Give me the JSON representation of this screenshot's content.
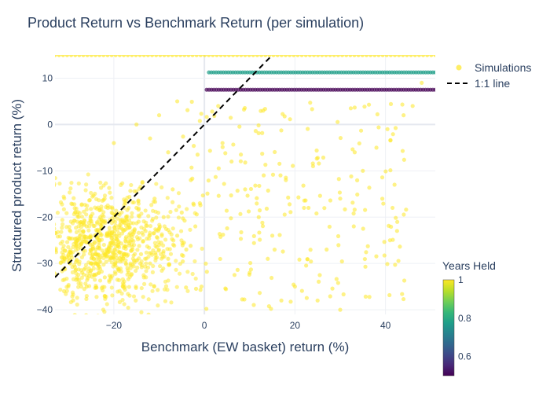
{
  "chart_data": {
    "type": "scatter",
    "title": "Product Return vs Benchmark Return (per simulation)",
    "xlabel": "Benchmark (EW basket) return (%)",
    "ylabel": "Structured product return (%)",
    "xlim": [
      -33,
      51
    ],
    "ylim": [
      -41,
      15
    ],
    "x_ticks": [
      -20,
      0,
      20,
      40
    ],
    "x_tick_labels": [
      "−20",
      "0",
      "20",
      "40"
    ],
    "y_ticks": [
      -40,
      -30,
      -20,
      -10,
      0,
      10
    ],
    "y_tick_labels": [
      "−40",
      "−30",
      "−20",
      "−10",
      "0",
      "10"
    ],
    "grid": true,
    "legend": {
      "position": "right",
      "entries": [
        {
          "label": "Simulations",
          "kind": "marker",
          "color": "#fde725"
        },
        {
          "label": "1:1 line",
          "kind": "dashed-line",
          "color": "#000000"
        }
      ]
    },
    "colorbar": {
      "title": "Years Held",
      "range": [
        0.5,
        1.0
      ],
      "ticks": [
        0.6,
        0.8,
        1.0
      ],
      "tick_labels": [
        "0.6",
        "0.8",
        "1"
      ],
      "colorscale": [
        "#440154",
        "#482878",
        "#3e4989",
        "#31688e",
        "#26828e",
        "#1f9e89",
        "#35b779",
        "#6ece58",
        "#b5de2b",
        "#fde725"
      ]
    },
    "series": [
      {
        "name": "Simulations",
        "kind": "markers",
        "bands": [
          {
            "years_held": 1.0,
            "y": 15.0,
            "x_range": [
              -33,
              51
            ],
            "description": "autocall at year 1 (clipped at top)"
          },
          {
            "years_held": 0.75,
            "y": 11.25,
            "x_range": [
              1,
              51
            ]
          },
          {
            "years_held": 0.5,
            "y": 7.5,
            "x_range": [
              0.5,
              51
            ]
          }
        ],
        "cloud_points": [
          [
            -30,
            -28
          ],
          [
            -28,
            -25
          ],
          [
            -27,
            -32
          ],
          [
            -26,
            -22
          ],
          [
            -25,
            -30
          ],
          [
            -24,
            -27
          ],
          [
            -23,
            -20
          ],
          [
            -22,
            -33
          ],
          [
            -21,
            -24
          ],
          [
            -20,
            -29
          ],
          [
            -19,
            -26
          ],
          [
            -18,
            -21
          ],
          [
            -17,
            -31
          ],
          [
            -16,
            -25
          ],
          [
            -15,
            -18
          ],
          [
            -14,
            -28
          ],
          [
            -13,
            -23
          ],
          [
            -12,
            -30
          ],
          [
            -11,
            -16
          ],
          [
            -10,
            -26
          ],
          [
            -9,
            -20
          ],
          [
            -8,
            -29
          ],
          [
            -7,
            -14
          ],
          [
            -6,
            -24
          ],
          [
            -5,
            -19
          ],
          [
            -4,
            -27
          ],
          [
            -3,
            -12
          ],
          [
            -2,
            -22
          ],
          [
            -1,
            -17
          ],
          [
            -31,
            -36
          ],
          [
            -29,
            -38
          ],
          [
            -26,
            -35
          ],
          [
            -22,
            -37
          ],
          [
            -18,
            -35
          ],
          [
            -20,
            -4
          ],
          [
            -15,
            0
          ],
          [
            -10,
            2
          ],
          [
            -6,
            5
          ],
          [
            -8,
            -6
          ],
          [
            -12,
            -3
          ],
          [
            4,
            -4
          ],
          [
            6,
            -8
          ],
          [
            9,
            -14
          ],
          [
            12,
            -20
          ],
          [
            15,
            -24
          ],
          [
            18,
            -12
          ],
          [
            22,
            -18
          ],
          [
            24,
            -9
          ],
          [
            27,
            -27
          ],
          [
            30,
            -16
          ],
          [
            33,
            -22
          ],
          [
            35,
            -10
          ],
          [
            38,
            -5
          ],
          [
            42,
            -13
          ],
          [
            46,
            4
          ],
          [
            48,
            9
          ],
          [
            44,
            2
          ],
          [
            41,
            -25
          ],
          [
            20,
            -35
          ],
          [
            25,
            -38
          ],
          [
            30,
            -40
          ],
          [
            10,
            -32
          ],
          [
            14,
            -29
          ],
          [
            17,
            -38
          ]
        ]
      },
      {
        "name": "1:1 line",
        "kind": "line",
        "dash": "dashed",
        "points": [
          [
            -33,
            -33
          ],
          [
            15,
            15
          ]
        ]
      }
    ]
  }
}
